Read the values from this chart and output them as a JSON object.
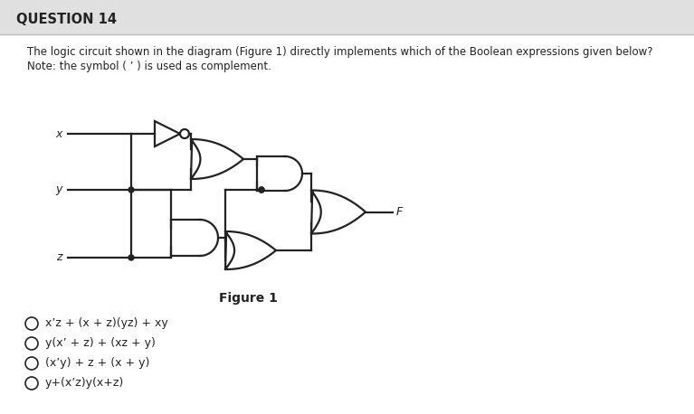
{
  "title": "QUESTION 14",
  "question_line1": "The logic circuit shown in the diagram (Figure 1) directly implements which of the Boolean expressions given below?",
  "question_line2": "Note: the symbol ( ’ ) is used as complement.",
  "figure_label": "Figure 1",
  "options": [
    "x’z + (x + z)(yz) + xy",
    "y(x’ + z) + (xz + y)",
    "(x’y) + z + (x + y)",
    "y+(x’z)y(x+z)"
  ],
  "bg_color": "#efefef",
  "white_color": "#ffffff",
  "line_color": "#222222",
  "lw": 1.6,
  "header_color": "#e0e0e0"
}
